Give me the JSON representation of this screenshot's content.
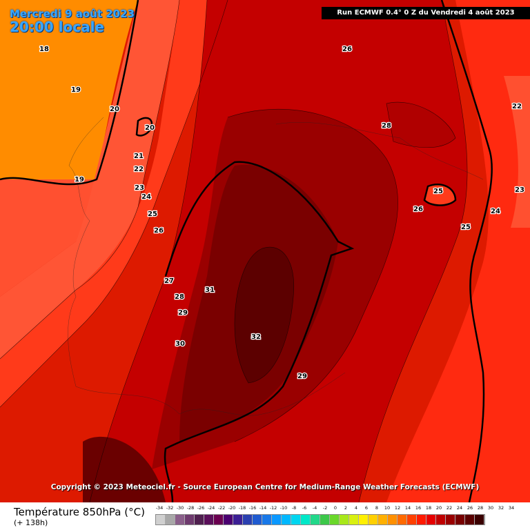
{
  "map": {
    "date_line1": "Mercredi 9 août 2023",
    "date_line2": "20:00 locale",
    "run_info": "Run ECMWF 0.4° 0 Z du Vendredi 4 août 2023",
    "copyright": "Copyright © 2023 Meteociel.fr - Source European Centre for Medium-Range Weather Forecasts (ECMWF)",
    "contour_labels": [
      "18",
      "19",
      "20",
      "20",
      "21",
      "22",
      "23",
      "24",
      "25",
      "26",
      "27",
      "28",
      "29",
      "30",
      "31",
      "32",
      "29",
      "26",
      "28",
      "25",
      "26",
      "25",
      "24",
      "23",
      "22",
      "19"
    ]
  },
  "legend": {
    "title": "Température 850hPa (°C)",
    "subtitle": "(+ 138h)",
    "ticks": [
      "-34",
      "-32",
      "-30",
      "-28",
      "-26",
      "-24",
      "-22",
      "-20",
      "-18",
      "-16",
      "-14",
      "-12",
      "-10",
      "-8",
      "-6",
      "-4",
      "-2",
      "0",
      "2",
      "4",
      "6",
      "8",
      "10",
      "12",
      "14",
      "16",
      "18",
      "20",
      "22",
      "24",
      "26",
      "28",
      "30",
      "32",
      "34"
    ],
    "colors": [
      "#d0d0d0",
      "#a8a8a8",
      "#8a5f8a",
      "#6e3a6e",
      "#4f1f4f",
      "#5a0f5a",
      "#6a0050",
      "#4a0070",
      "#3b1f94",
      "#2a40b0",
      "#1f5bd0",
      "#1878e8",
      "#0a98ff",
      "#00b8ff",
      "#00d6f0",
      "#00e8c8",
      "#22d88a",
      "#3cc84a",
      "#6ad82a",
      "#a8e81a",
      "#d8f010",
      "#fff000",
      "#ffd000",
      "#ffb000",
      "#ff9000",
      "#ff6a00",
      "#ff4000",
      "#ff1a00",
      "#e60000",
      "#c00000",
      "#9a0000",
      "#780000",
      "#5a0000",
      "#3a0000"
    ]
  }
}
